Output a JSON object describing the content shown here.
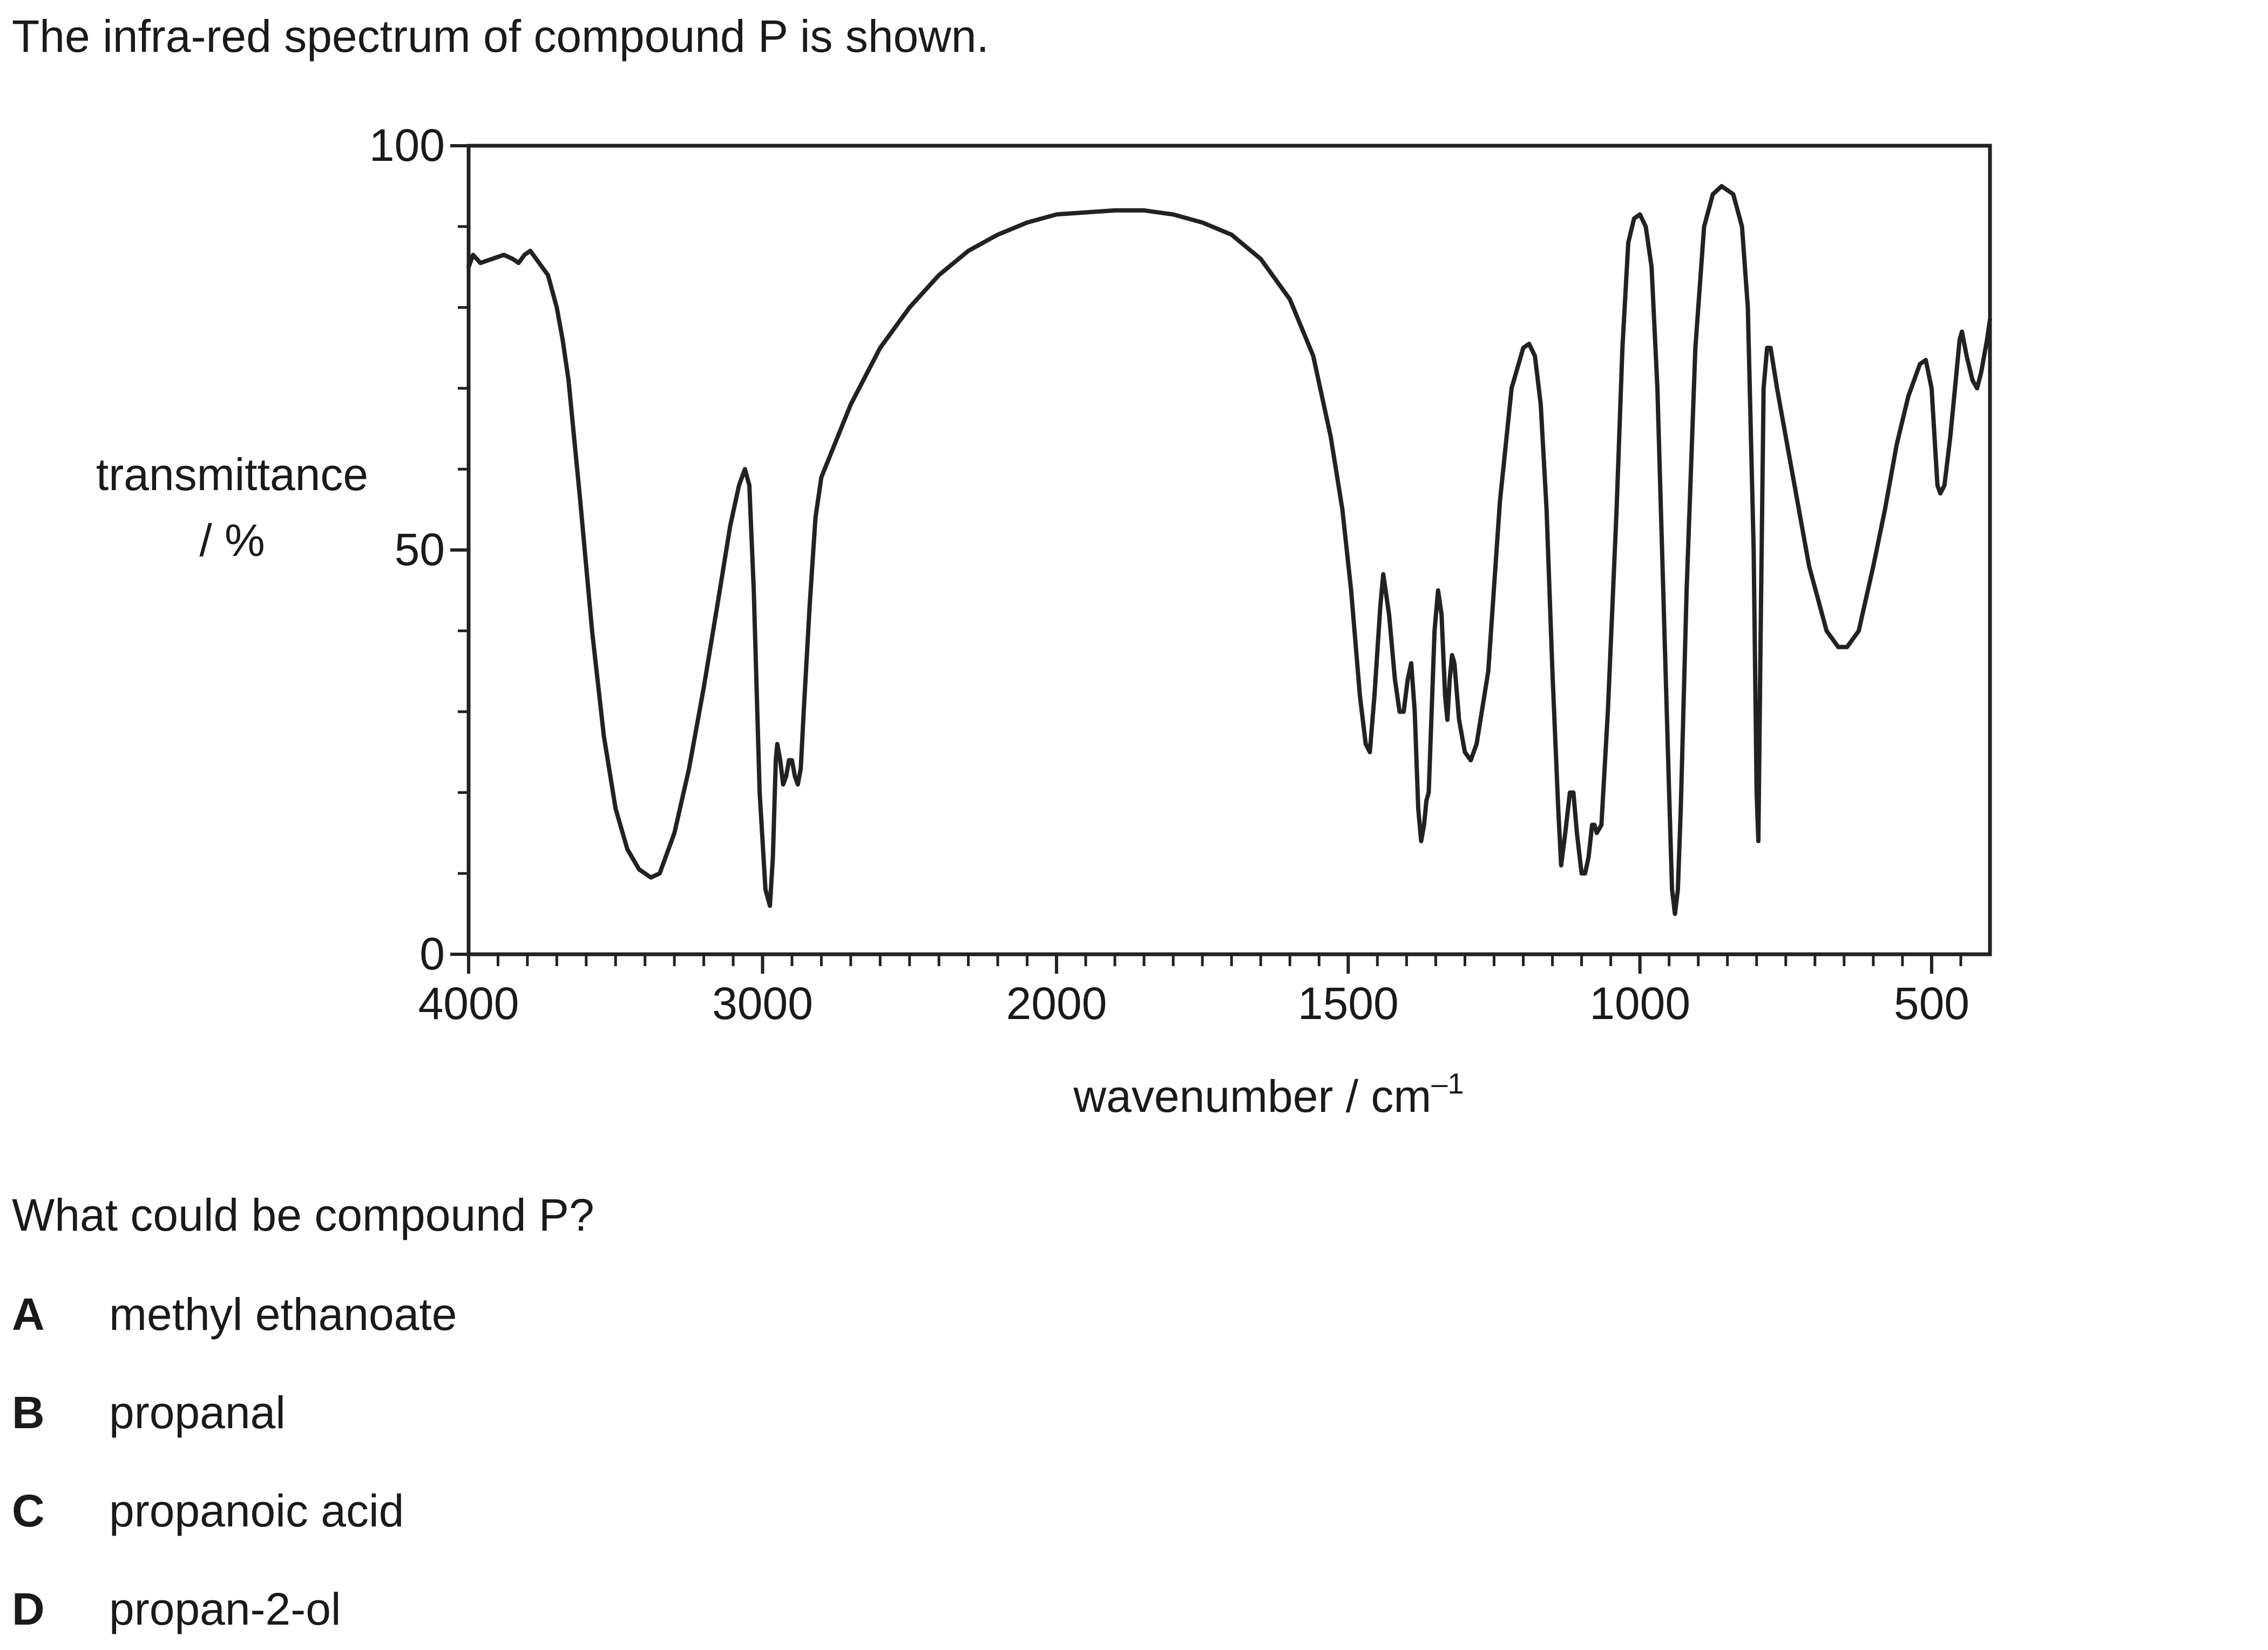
{
  "intro": "The infra-red spectrum of compound P is shown.",
  "question": "What could be compound P?",
  "options": [
    {
      "letter": "A",
      "text": "methyl ethanoate"
    },
    {
      "letter": "B",
      "text": "propanal"
    },
    {
      "letter": "C",
      "text": "propanoic acid"
    },
    {
      "letter": "D",
      "text": "propan-2-ol"
    }
  ],
  "chart_data": {
    "type": "line",
    "title": "",
    "ylabel_line1": "transmittance",
    "ylabel_line2": "/ %",
    "xlabel": "wavenumber / cm",
    "xlabel_sup": "–1",
    "ylim": [
      0,
      100
    ],
    "yticks": [
      0,
      50,
      100
    ],
    "xticks": [
      4000,
      3000,
      2000,
      1500,
      1000,
      500
    ],
    "x_axis_note": "non-linear: 4000–2000 scaled half as wide per unit as 2000–400",
    "x_range": [
      4000,
      400
    ],
    "grid": false,
    "line_color": "#222222",
    "series": [
      {
        "points": [
          [
            4000,
            85
          ],
          [
            3985,
            86.5
          ],
          [
            3960,
            85.5
          ],
          [
            3920,
            86
          ],
          [
            3880,
            86.5
          ],
          [
            3850,
            86
          ],
          [
            3830,
            85.5
          ],
          [
            3810,
            86.5
          ],
          [
            3790,
            87
          ],
          [
            3770,
            86
          ],
          [
            3750,
            85
          ],
          [
            3730,
            84
          ],
          [
            3700,
            80
          ],
          [
            3680,
            76
          ],
          [
            3660,
            71
          ],
          [
            3620,
            56
          ],
          [
            3580,
            40
          ],
          [
            3540,
            27
          ],
          [
            3500,
            18
          ],
          [
            3460,
            13
          ],
          [
            3420,
            10.5
          ],
          [
            3380,
            9.5
          ],
          [
            3350,
            10
          ],
          [
            3300,
            15
          ],
          [
            3250,
            23
          ],
          [
            3200,
            33
          ],
          [
            3150,
            44
          ],
          [
            3110,
            53
          ],
          [
            3080,
            58
          ],
          [
            3060,
            60
          ],
          [
            3045,
            58
          ],
          [
            3030,
            45
          ],
          [
            3010,
            20
          ],
          [
            2990,
            8
          ],
          [
            2975,
            6
          ],
          [
            2965,
            12
          ],
          [
            2955,
            24
          ],
          [
            2950,
            26
          ],
          [
            2940,
            24
          ],
          [
            2930,
            21
          ],
          [
            2920,
            22
          ],
          [
            2910,
            24
          ],
          [
            2900,
            24
          ],
          [
            2890,
            22
          ],
          [
            2880,
            21
          ],
          [
            2870,
            23
          ],
          [
            2860,
            30
          ],
          [
            2840,
            43
          ],
          [
            2820,
            54
          ],
          [
            2800,
            59
          ],
          [
            2700,
            68
          ],
          [
            2600,
            75
          ],
          [
            2500,
            80
          ],
          [
            2400,
            84
          ],
          [
            2300,
            87
          ],
          [
            2200,
            89
          ],
          [
            2100,
            90.5
          ],
          [
            2000,
            91.5
          ],
          [
            1900,
            92
          ],
          [
            1850,
            92
          ],
          [
            1800,
            91.5
          ],
          [
            1750,
            90.5
          ],
          [
            1700,
            89
          ],
          [
            1650,
            86
          ],
          [
            1600,
            81
          ],
          [
            1560,
            74
          ],
          [
            1530,
            64
          ],
          [
            1510,
            55
          ],
          [
            1495,
            45
          ],
          [
            1480,
            32
          ],
          [
            1470,
            26
          ],
          [
            1463,
            25
          ],
          [
            1455,
            32
          ],
          [
            1445,
            43
          ],
          [
            1440,
            47
          ],
          [
            1430,
            42
          ],
          [
            1420,
            34
          ],
          [
            1412,
            30
          ],
          [
            1405,
            30
          ],
          [
            1398,
            34
          ],
          [
            1392,
            36
          ],
          [
            1386,
            30
          ],
          [
            1380,
            18
          ],
          [
            1375,
            14
          ],
          [
            1370,
            16
          ],
          [
            1366,
            19
          ],
          [
            1362,
            20
          ],
          [
            1357,
            30
          ],
          [
            1352,
            40
          ],
          [
            1346,
            45
          ],
          [
            1340,
            42
          ],
          [
            1334,
            32
          ],
          [
            1330,
            29
          ],
          [
            1326,
            34
          ],
          [
            1322,
            37
          ],
          [
            1318,
            36
          ],
          [
            1310,
            29
          ],
          [
            1300,
            25
          ],
          [
            1290,
            24
          ],
          [
            1280,
            26
          ],
          [
            1260,
            35
          ],
          [
            1240,
            56
          ],
          [
            1220,
            70
          ],
          [
            1200,
            75
          ],
          [
            1190,
            75.5
          ],
          [
            1180,
            74
          ],
          [
            1170,
            68
          ],
          [
            1160,
            55
          ],
          [
            1150,
            35
          ],
          [
            1140,
            18
          ],
          [
            1135,
            11
          ],
          [
            1128,
            15
          ],
          [
            1120,
            20
          ],
          [
            1114,
            20
          ],
          [
            1108,
            15
          ],
          [
            1100,
            10
          ],
          [
            1094,
            10
          ],
          [
            1088,
            12
          ],
          [
            1082,
            16
          ],
          [
            1078,
            16
          ],
          [
            1074,
            15
          ],
          [
            1066,
            16
          ],
          [
            1055,
            30
          ],
          [
            1040,
            55
          ],
          [
            1030,
            75
          ],
          [
            1020,
            88
          ],
          [
            1010,
            91
          ],
          [
            1000,
            91.5
          ],
          [
            990,
            90
          ],
          [
            980,
            85
          ],
          [
            970,
            70
          ],
          [
            960,
            45
          ],
          [
            950,
            20
          ],
          [
            945,
            8
          ],
          [
            940,
            5
          ],
          [
            935,
            8
          ],
          [
            930,
            18
          ],
          [
            920,
            45
          ],
          [
            905,
            75
          ],
          [
            890,
            90
          ],
          [
            875,
            94
          ],
          [
            860,
            95
          ],
          [
            840,
            94
          ],
          [
            825,
            90
          ],
          [
            815,
            80
          ],
          [
            805,
            50
          ],
          [
            800,
            20
          ],
          [
            797,
            14
          ],
          [
            793,
            40
          ],
          [
            788,
            70
          ],
          [
            782,
            75
          ],
          [
            776,
            75
          ],
          [
            765,
            70
          ],
          [
            740,
            60
          ],
          [
            710,
            48
          ],
          [
            680,
            40
          ],
          [
            660,
            38
          ],
          [
            645,
            38
          ],
          [
            625,
            40
          ],
          [
            600,
            48
          ],
          [
            580,
            55
          ],
          [
            560,
            63
          ],
          [
            540,
            69
          ],
          [
            520,
            73
          ],
          [
            510,
            73.5
          ],
          [
            500,
            70
          ],
          [
            495,
            64
          ],
          [
            490,
            58
          ],
          [
            485,
            57
          ],
          [
            478,
            58
          ],
          [
            468,
            64
          ],
          [
            460,
            70
          ],
          [
            452,
            76
          ],
          [
            448,
            77
          ],
          [
            440,
            74
          ],
          [
            430,
            71
          ],
          [
            422,
            70
          ],
          [
            415,
            72
          ],
          [
            405,
            76
          ],
          [
            400,
            78.5
          ]
        ]
      }
    ]
  }
}
